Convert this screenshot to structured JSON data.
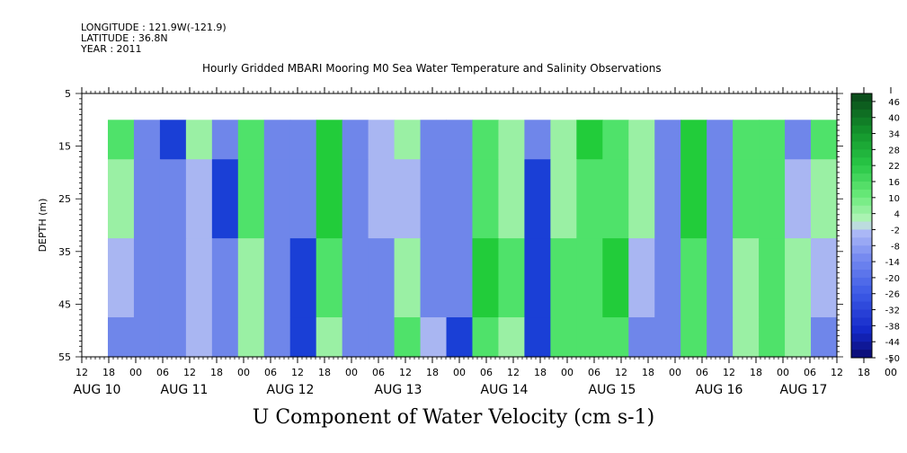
{
  "header": {
    "longitude": "LONGITUDE : 121.9W(-121.9)",
    "latitude": "LATITUDE : 36.8N",
    "year": "YEAR : 2011",
    "title": "Hourly Gridded MBARI Mooring M0 Sea Water Temperature and Salinity Observations"
  },
  "footer_label": "U Component of Water Velocity (cm s-1)",
  "colors": {
    "strong_negative": "#1a3fd6",
    "moderate_negative": "#6f86ea",
    "weak_negative": "#a9b6f2",
    "weak_positive": "#9af0a4",
    "moderate_positive": "#4fe26a",
    "strong_positive": "#22cc3a"
  },
  "chart_data": {
    "type": "heatmap",
    "title": "Hourly Gridded MBARI Mooring M0 Sea Water Temperature and Salinity Observations",
    "xlabel": "",
    "ylabel": "DEPTH (m)",
    "colorbar_label": "U Component of Water Velocity (cm s-1)",
    "ylim": [
      55,
      5
    ],
    "y_ticks": [
      "5",
      "15",
      "25",
      "35",
      "45",
      "55"
    ],
    "data_depth_range_m": [
      10,
      55
    ],
    "x_hour_ticks": [
      "12",
      "18",
      "00",
      "06",
      "12",
      "18",
      "00",
      "06",
      "12",
      "18",
      "00",
      "06",
      "12",
      "18",
      "00",
      "06",
      "12",
      "18",
      "00",
      "06",
      "12",
      "18",
      "00",
      "06",
      "12",
      "18",
      "00",
      "06",
      "12",
      "18",
      "00",
      "06",
      "12"
    ],
    "x_date_labels": [
      "AUG 10",
      "AUG 11",
      "AUG 12",
      "AUG 13",
      "AUG 14",
      "AUG 15",
      "AUG 16",
      "AUG 17"
    ],
    "colorbar_ticks": [
      "46",
      "40",
      "34",
      "28",
      "22",
      "16",
      "10",
      "4",
      "-2",
      "-8",
      "-14",
      "-20",
      "-26",
      "-32",
      "-38",
      "-44",
      "-50"
    ],
    "colorbar_range": [
      -50,
      49
    ],
    "time_start": "2011-08-10T18:00",
    "time_end": "2011-08-17T12:00",
    "time_step_hours": 6,
    "depth_levels_m": [
      10,
      25,
      40,
      55
    ],
    "u_values_by_depth": [
      [
        10,
        -12,
        -20,
        2,
        -18,
        14,
        -10,
        -14,
        18,
        -8,
        -4,
        0,
        -12,
        -12,
        14,
        2,
        -18,
        4,
        16,
        12,
        4,
        -10,
        18,
        -8,
        12,
        14,
        -8,
        8
      ],
      [
        2,
        -14,
        -18,
        -2,
        -20,
        12,
        -12,
        -16,
        16,
        -10,
        -6,
        -2,
        -16,
        -14,
        12,
        4,
        -22,
        6,
        14,
        14,
        2,
        -14,
        16,
        -10,
        10,
        12,
        -6,
        4
      ],
      [
        -6,
        -8,
        -16,
        -4,
        -14,
        4,
        -14,
        -20,
        10,
        -8,
        -10,
        6,
        -10,
        -16,
        16,
        8,
        -24,
        10,
        12,
        16,
        -6,
        -16,
        8,
        -12,
        6,
        8,
        6,
        -6
      ],
      [
        -8,
        -10,
        -14,
        -6,
        -18,
        2,
        -18,
        -24,
        6,
        -10,
        -16,
        10,
        -6,
        -20,
        10,
        6,
        -26,
        12,
        8,
        14,
        -8,
        -18,
        10,
        -14,
        6,
        10,
        4,
        -10
      ]
    ]
  }
}
